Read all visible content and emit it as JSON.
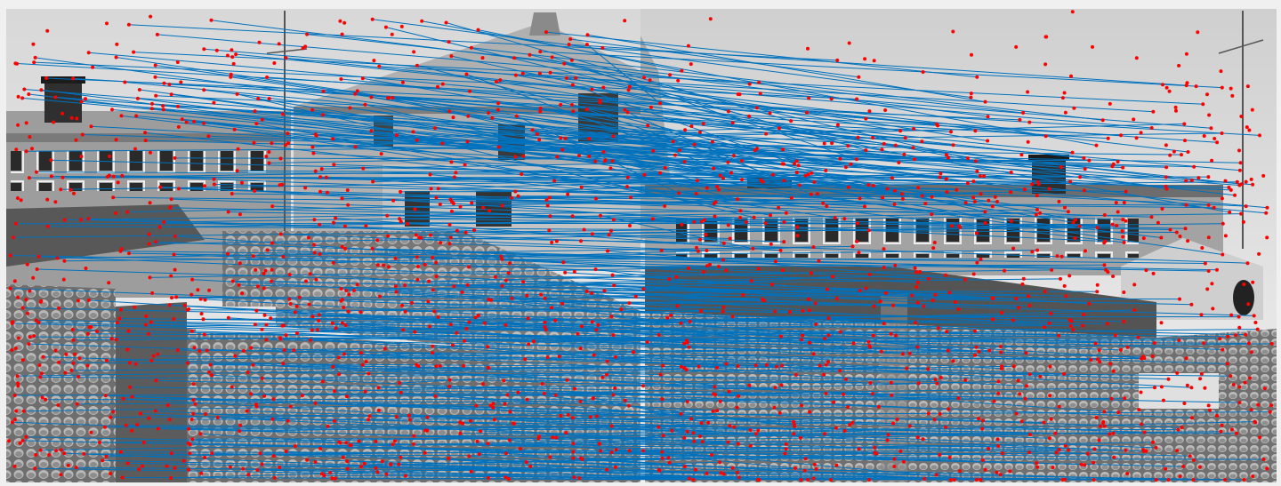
{
  "figure": {
    "background_color": "#f0f0f0",
    "match_line_color": "#0072bd",
    "keypoint_color": "#ff0000",
    "image_tone": "grayscale",
    "image_left": {
      "subject": "rooftops-with-chimneys-and-tiled-roofs"
    },
    "image_right": {
      "subject": "rooftops-with-chimneys-and-tiled-roofs"
    },
    "overlay": "feature-matches",
    "pane_count": 2
  }
}
